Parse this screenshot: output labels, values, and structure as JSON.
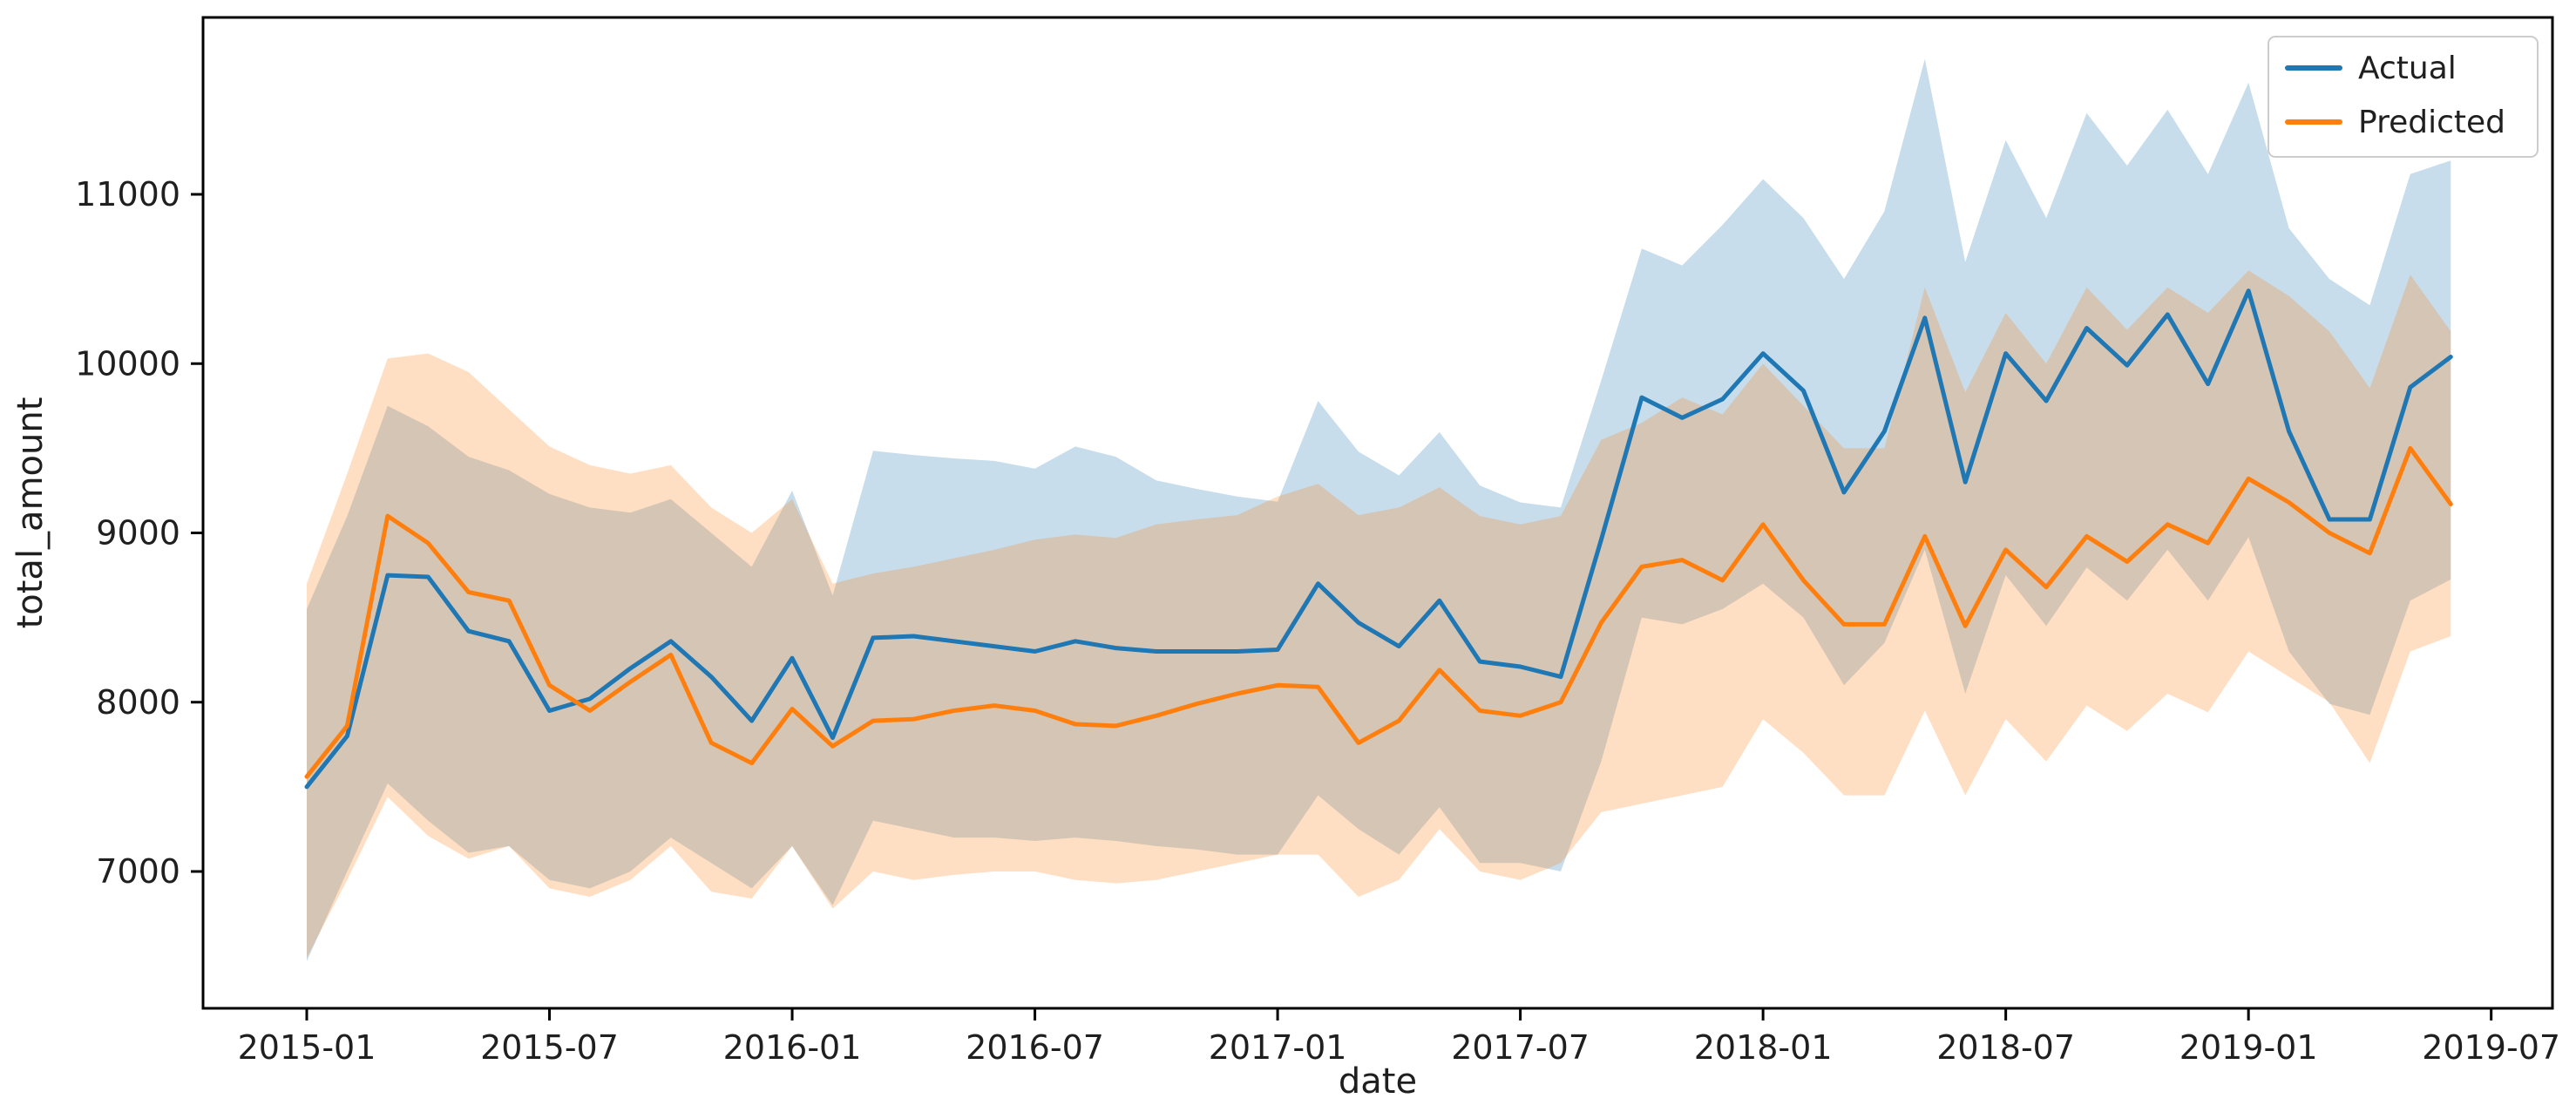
{
  "chart_data": {
    "type": "line",
    "title": "",
    "xlabel": "date",
    "ylabel": "total_amount",
    "grid": false,
    "legend": {
      "position": "upper right",
      "entries": [
        "Actual",
        "Predicted"
      ]
    },
    "x_tick_labels": [
      "2015-01",
      "2015-07",
      "2016-01",
      "2016-07",
      "2017-01",
      "2017-07",
      "2018-01",
      "2018-07",
      "2019-01",
      "2019-07"
    ],
    "y_tick_labels": [
      "7000",
      "8000",
      "9000",
      "10000",
      "11000"
    ],
    "y_ticks": [
      7000,
      8000,
      9000,
      10000,
      11000
    ],
    "ylim": [
      6200,
      12050
    ],
    "xlim_months": [
      "2014-10",
      "2019-09"
    ],
    "band_alpha": 0.25,
    "x": [
      "2015-01",
      "2015-02",
      "2015-03",
      "2015-04",
      "2015-05",
      "2015-06",
      "2015-07",
      "2015-08",
      "2015-09",
      "2015-10",
      "2015-11",
      "2015-12",
      "2016-01",
      "2016-02",
      "2016-03",
      "2016-04",
      "2016-05",
      "2016-06",
      "2016-07",
      "2016-08",
      "2016-09",
      "2016-10",
      "2016-11",
      "2016-12",
      "2017-01",
      "2017-02",
      "2017-03",
      "2017-04",
      "2017-05",
      "2017-06",
      "2017-07",
      "2017-08",
      "2017-09",
      "2017-10",
      "2017-11",
      "2017-12",
      "2018-01",
      "2018-02",
      "2018-03",
      "2018-04",
      "2018-05",
      "2018-06",
      "2018-07",
      "2018-08",
      "2018-09",
      "2018-10",
      "2018-11",
      "2018-12",
      "2019-01",
      "2019-02",
      "2019-03",
      "2019-04",
      "2019-05",
      "2019-06"
    ],
    "series": [
      {
        "name": "Actual",
        "color": "#1f77b4",
        "values": [
          7500,
          7800,
          8750,
          8740,
          8420,
          8360,
          7950,
          8020,
          8200,
          8360,
          8150,
          7890,
          8260,
          7790,
          8380,
          8390,
          8360,
          8330,
          8300,
          8360,
          8320,
          8300,
          8300,
          8300,
          8310,
          8700,
          8470,
          8330,
          8600,
          8240,
          8210,
          8150,
          8960,
          9800,
          9680,
          9790,
          10060,
          9840,
          9240,
          9600,
          10270,
          9300,
          10060,
          9780,
          10210,
          9990,
          10290,
          9880,
          10430,
          9600,
          9080,
          9080,
          9860,
          10040
        ],
        "band_upper": [
          8550,
          9100,
          9750,
          9630,
          9450,
          9370,
          9230,
          9150,
          9120,
          9200,
          9000,
          8800,
          9250,
          8630,
          9485,
          9460,
          9440,
          9425,
          9380,
          9510,
          9450,
          9310,
          9260,
          9215,
          9185,
          9780,
          9480,
          9340,
          9595,
          9280,
          9180,
          9150,
          9900,
          10680,
          10580,
          10820,
          11090,
          10860,
          10500,
          10900,
          11800,
          10600,
          11320,
          10860,
          11480,
          11170,
          11500,
          11120,
          11660,
          10800,
          10500,
          10345,
          11120,
          11200
        ],
        "band_lower": [
          6470,
          7000,
          7520,
          7300,
          7110,
          7150,
          6950,
          6900,
          7000,
          7200,
          7050,
          6900,
          7150,
          6800,
          7300,
          7250,
          7200,
          7200,
          7180,
          7200,
          7180,
          7150,
          7130,
          7100,
          7100,
          7450,
          7250,
          7100,
          7380,
          7050,
          7050,
          7000,
          7650,
          8500,
          8460,
          8550,
          8700,
          8500,
          8100,
          8350,
          8900,
          8050,
          8750,
          8450,
          8795,
          8600,
          8900,
          8600,
          8975,
          8300,
          7990,
          7925,
          8600,
          8725
        ]
      },
      {
        "name": "Predicted",
        "color": "#ff7f0e",
        "values": [
          7560,
          7860,
          9100,
          8940,
          8650,
          8600,
          8100,
          7950,
          8120,
          8280,
          7760,
          7640,
          7960,
          7740,
          7890,
          7900,
          7950,
          7980,
          7950,
          7870,
          7860,
          7920,
          7990,
          8050,
          8100,
          8090,
          7760,
          7890,
          8190,
          7950,
          7920,
          8000,
          8470,
          8800,
          8840,
          8720,
          9050,
          8720,
          8460,
          8460,
          8980,
          8450,
          8900,
          8680,
          8980,
          8830,
          9050,
          8940,
          9320,
          9180,
          9000,
          8880,
          9500,
          9170
        ],
        "band_upper": [
          8700,
          9350,
          10030,
          10060,
          9950,
          9730,
          9510,
          9400,
          9350,
          9400,
          9150,
          9000,
          9200,
          8700,
          8760,
          8800,
          8850,
          8900,
          8960,
          8990,
          8970,
          9050,
          9080,
          9105,
          9215,
          9290,
          9105,
          9150,
          9270,
          9100,
          9050,
          9100,
          9550,
          9650,
          9800,
          9700,
          10000,
          9750,
          9500,
          9500,
          10450,
          9830,
          10300,
          10000,
          10450,
          10200,
          10450,
          10300,
          10550,
          10400,
          10190,
          9855,
          10525,
          10190
        ],
        "band_lower": [
          6490,
          6950,
          7440,
          7210,
          7075,
          7150,
          6900,
          6850,
          6950,
          7150,
          6880,
          6840,
          7150,
          6780,
          7000,
          6950,
          6980,
          7000,
          7000,
          6950,
          6930,
          6950,
          7000,
          7050,
          7100,
          7100,
          6850,
          6950,
          7250,
          7000,
          6950,
          7050,
          7350,
          7400,
          7450,
          7500,
          7900,
          7700,
          7450,
          7450,
          7950,
          7450,
          7900,
          7650,
          7980,
          7830,
          8050,
          7940,
          8300,
          8150,
          8000,
          7640,
          8300,
          8390
        ]
      }
    ]
  }
}
